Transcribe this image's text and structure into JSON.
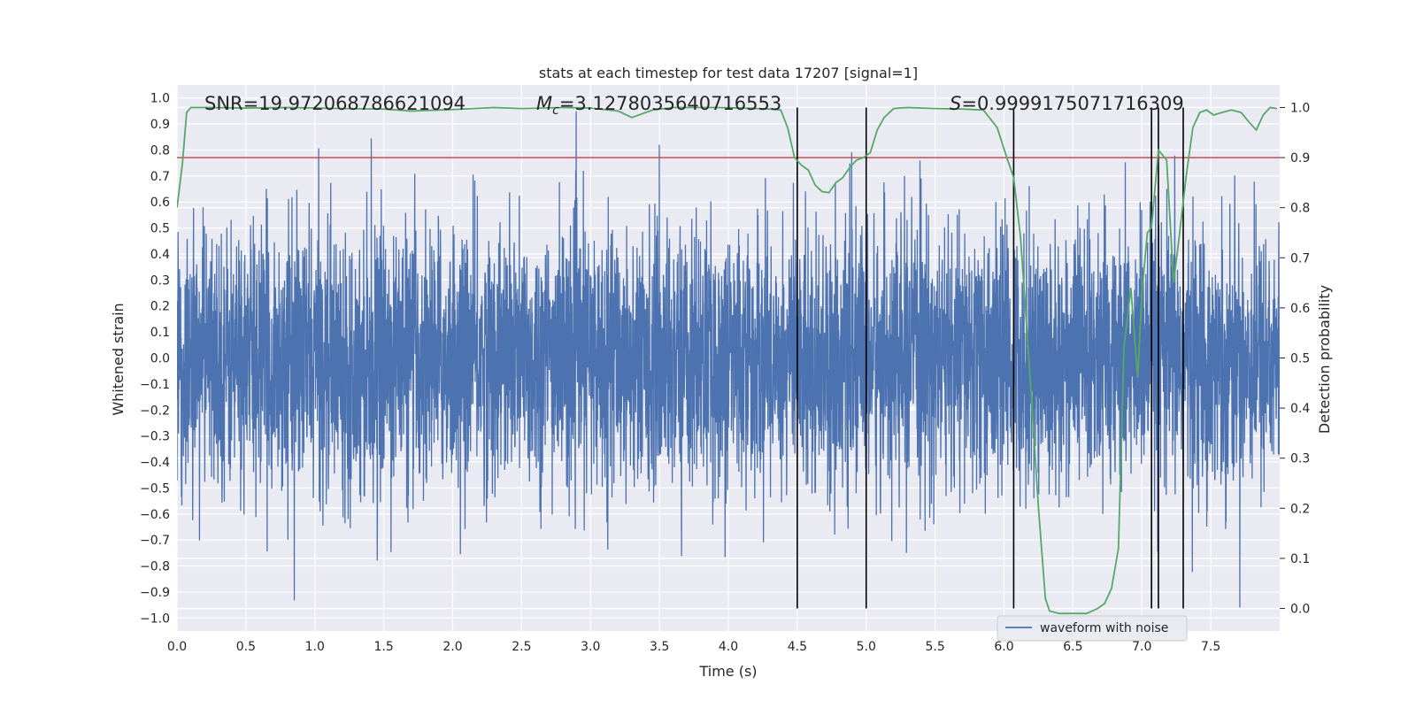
{
  "chart_data": {
    "type": "line",
    "title": "stats at each timestep for test data 17207 [signal=1]",
    "xlabel": "Time (s)",
    "ylabel": "Whitened strain",
    "y2label": "Detection probability",
    "xlim": [
      0.0,
      8.0
    ],
    "ylim": [
      -1.05,
      1.05
    ],
    "y2lim": [
      -0.045,
      1.045
    ],
    "x_ticks": [
      0.0,
      0.5,
      1.0,
      1.5,
      2.0,
      2.5,
      3.0,
      3.5,
      4.0,
      4.5,
      5.0,
      5.5,
      6.0,
      6.5,
      7.0,
      7.5
    ],
    "x_tick_labels": [
      "0.0",
      "0.5",
      "1.0",
      "1.5",
      "2.0",
      "2.5",
      "3.0",
      "3.5",
      "4.0",
      "4.5",
      "5.0",
      "5.5",
      "6.0",
      "6.5",
      "7.0",
      "7.5"
    ],
    "y_ticks": [
      -1.0,
      -0.9,
      -0.8,
      -0.7,
      -0.6,
      -0.5,
      -0.4,
      -0.3,
      -0.2,
      -0.1,
      0.0,
      0.1,
      0.2,
      0.3,
      0.4,
      0.5,
      0.6,
      0.7,
      0.8,
      0.9,
      1.0
    ],
    "y_tick_labels": [
      "−1.0",
      "−0.9",
      "−0.8",
      "−0.7",
      "−0.6",
      "−0.5",
      "−0.4",
      "−0.3",
      "−0.2",
      "−0.1",
      "0.0",
      "0.1",
      "0.2",
      "0.3",
      "0.4",
      "0.5",
      "0.6",
      "0.7",
      "0.8",
      "0.9",
      "1.0"
    ],
    "y2_ticks": [
      0.0,
      0.1,
      0.2,
      0.3,
      0.4,
      0.5,
      0.6,
      0.7,
      0.8,
      0.9,
      1.0
    ],
    "y2_tick_labels": [
      "0.0",
      "0.1",
      "0.2",
      "0.3",
      "0.4",
      "0.5",
      "0.6",
      "0.7",
      "0.8",
      "0.9",
      "1.0"
    ],
    "grid": true,
    "threshold": 0.9,
    "vertical_lines_x": [
      4.5,
      5.0,
      6.07,
      7.07,
      7.12,
      7.3
    ],
    "annotations": [
      {
        "text": "SNR=19.972068786621094"
      },
      {
        "text": "M_c=3.1278035640716553",
        "symbol": "M",
        "subscript": "c",
        "value": "=3.1278035640716553"
      },
      {
        "text": "S=0.9999175071716309",
        "symbol": "S",
        "value": "=0.9999175071716309"
      }
    ],
    "legend": {
      "placement": "lower-right",
      "entries": [
        "waveform with noise"
      ]
    },
    "series": [
      {
        "name": "waveform with noise",
        "axis": "left",
        "style": "dense-noise",
        "duration": 8.0,
        "typical_amplitude": 0.4,
        "max_amplitude": 1.0,
        "min_amplitude": -0.96,
        "color": "#4c72b0"
      },
      {
        "axis": "right",
        "style": "line",
        "color": "#55a868",
        "x": [
          0.0,
          0.04,
          0.07,
          0.1,
          0.2,
          0.5,
          0.8,
          1.2,
          1.5,
          1.7,
          2.0,
          2.3,
          2.5,
          2.8,
          3.0,
          3.2,
          3.3,
          3.45,
          3.6,
          3.9,
          4.1,
          4.3,
          4.38,
          4.43,
          4.48,
          4.53,
          4.58,
          4.63,
          4.68,
          4.73,
          4.78,
          4.83,
          4.88,
          4.93,
          4.98,
          5.03,
          5.08,
          5.13,
          5.2,
          5.3,
          5.5,
          5.7,
          5.85,
          5.95,
          6.02,
          6.07,
          6.12,
          6.18,
          6.25,
          6.3,
          6.33,
          6.4,
          6.5,
          6.6,
          6.68,
          6.73,
          6.78,
          6.83,
          6.87,
          6.92,
          6.97,
          7.0,
          7.04,
          7.07,
          7.12,
          7.18,
          7.23,
          7.27,
          7.32,
          7.37,
          7.42,
          7.47,
          7.52,
          7.58,
          7.65,
          7.72,
          7.78,
          7.83,
          7.88,
          7.93,
          7.98
        ],
        "y": [
          0.8,
          0.89,
          0.99,
          1.0,
          1.0,
          0.999,
          1.0,
          0.998,
          0.997,
          0.993,
          0.996,
          1.0,
          0.998,
          1.0,
          0.999,
          0.993,
          0.98,
          0.995,
          1.0,
          1.0,
          0.999,
          0.997,
          0.995,
          0.96,
          0.9,
          0.885,
          0.875,
          0.845,
          0.832,
          0.83,
          0.85,
          0.86,
          0.88,
          0.895,
          0.9,
          0.91,
          0.955,
          0.98,
          0.998,
          1.0,
          0.998,
          0.997,
          0.995,
          0.96,
          0.9,
          0.86,
          0.74,
          0.5,
          0.2,
          0.02,
          -0.005,
          -0.01,
          -0.01,
          -0.01,
          0.0,
          0.01,
          0.04,
          0.12,
          0.52,
          0.64,
          0.46,
          0.63,
          0.75,
          0.76,
          0.915,
          0.895,
          0.65,
          0.74,
          0.86,
          0.96,
          0.99,
          0.995,
          0.985,
          0.99,
          0.995,
          0.99,
          0.97,
          0.955,
          0.985,
          1.0,
          0.998
        ]
      }
    ]
  }
}
